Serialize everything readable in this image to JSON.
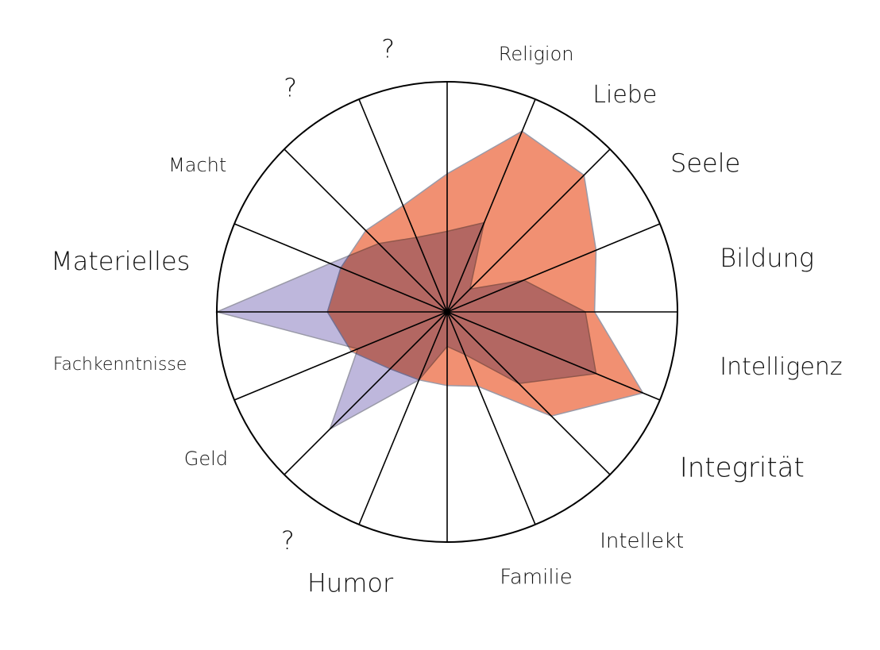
{
  "chart_data": {
    "type": "radar",
    "title": "",
    "max": 1,
    "grid": "spokes",
    "axes": [
      "Religion",
      "Liebe",
      "Seele",
      "Bildung",
      "Intelligenz",
      "Integrität",
      "Intellekt",
      "Familie",
      "Humor",
      "?",
      "Geld",
      "Fachkenntnisse",
      "Materielles",
      "Macht",
      "?",
      "?"
    ],
    "series": [
      {
        "color": "#f08a6a",
        "values": [
          0.6,
          0.85,
          0.84,
          0.7,
          0.64,
          0.92,
          0.64,
          0.35,
          0.32,
          0.32,
          0.35,
          0.45,
          0.52,
          0.5,
          0.5,
          0.5
        ]
      },
      {
        "color": "#a89fd0",
        "values": [
          0.35,
          0.42,
          0.14,
          0.36,
          0.6,
          0.7,
          0.44,
          0.2,
          0.15,
          0.32,
          0.72,
          0.42,
          1.0,
          0.55,
          0.42,
          0.35
        ]
      }
    ]
  }
}
